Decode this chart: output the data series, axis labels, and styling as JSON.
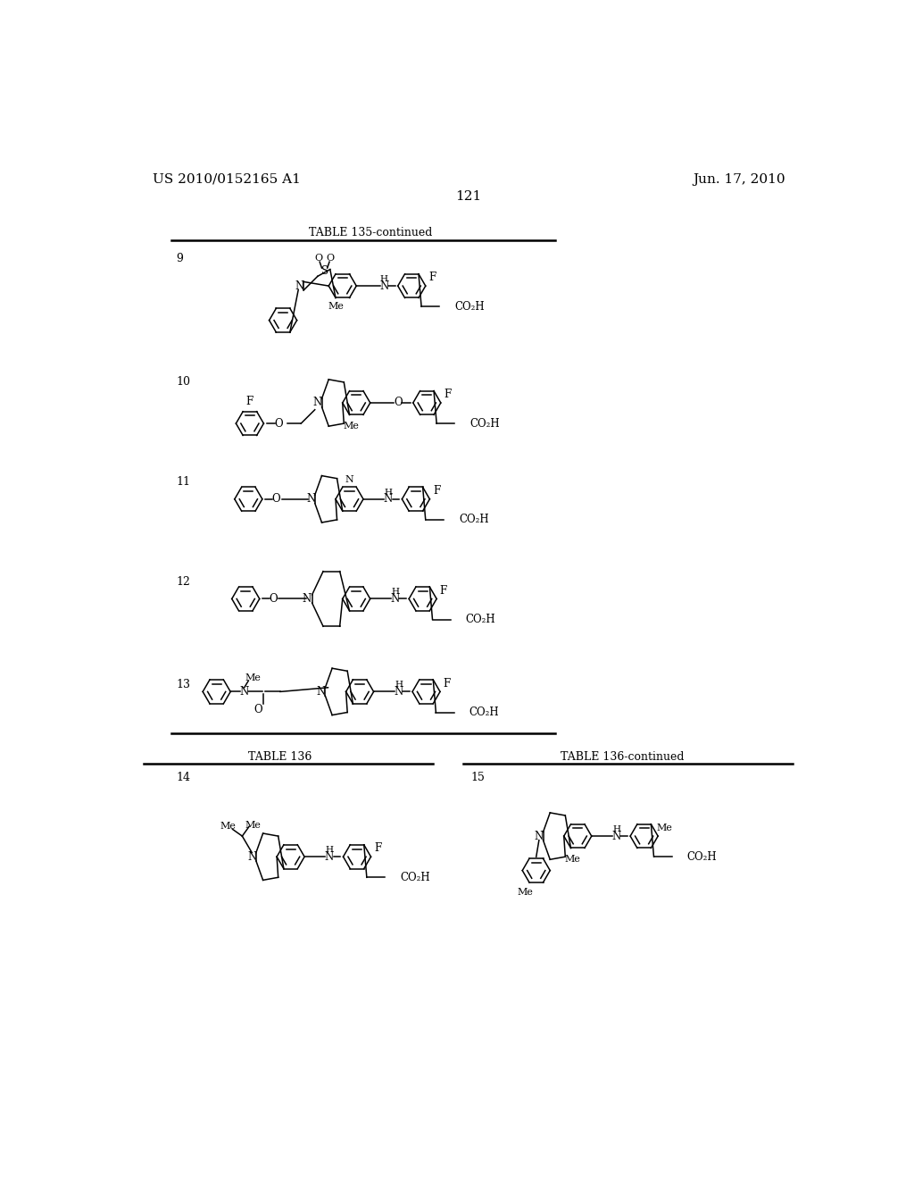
{
  "background_color": "#ffffff",
  "header_left": "US 2010/0152165 A1",
  "header_right": "Jun. 17, 2010",
  "page_number": "121",
  "table1_title": "TABLE 135-continued",
  "table2_title": "TABLE 136",
  "table3_title": "TABLE 136-continued"
}
